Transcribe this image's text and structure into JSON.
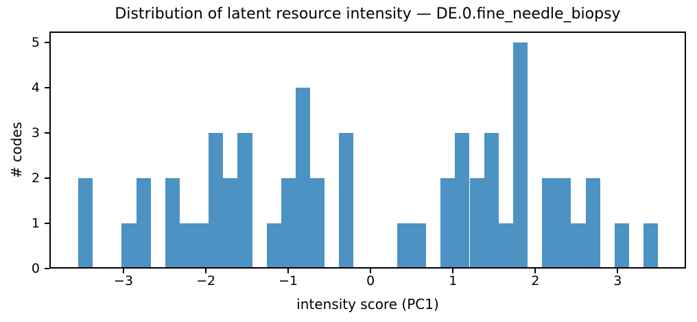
{
  "chart_data": {
    "type": "bar",
    "subtype": "histogram",
    "title": "Distribution of latent resource intensity — DE.0.fine_needle_biopsy",
    "xlabel": "intensity score (PC1)",
    "ylabel": "# codes",
    "bar_color": "#4c92c3",
    "axis_color": "#000000",
    "background_color": "#ffffff",
    "bin_start": -3.55,
    "bin_width": 0.176,
    "counts": [
      2,
      0,
      0,
      1,
      2,
      0,
      2,
      1,
      1,
      3,
      2,
      3,
      0,
      1,
      2,
      4,
      2,
      0,
      3,
      0,
      0,
      0,
      1,
      1,
      0,
      2,
      3,
      2,
      3,
      1,
      5,
      0,
      2,
      2,
      1,
      2,
      0,
      1,
      0,
      1
    ],
    "xlim": [
      -3.9,
      3.83
    ],
    "ylim": [
      0,
      5.25
    ],
    "xticks": [
      -3,
      -2,
      -1,
      0,
      1,
      2,
      3
    ],
    "xtick_labels": [
      "−3",
      "−2",
      "−1",
      "0",
      "1",
      "2",
      "3"
    ],
    "yticks": [
      0,
      1,
      2,
      3,
      4,
      5
    ],
    "ytick_labels": [
      "0",
      "1",
      "2",
      "3",
      "4",
      "5"
    ],
    "grid": false,
    "legend": null
  }
}
